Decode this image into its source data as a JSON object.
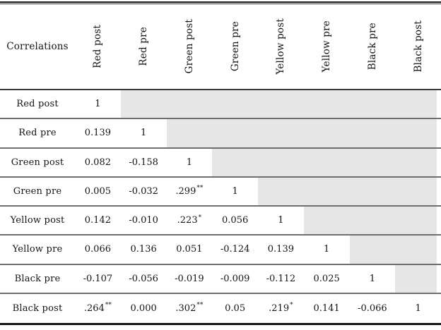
{
  "table": {
    "corner_label": "Correlations",
    "columns": [
      "Red post",
      "Red pre",
      "Green post",
      "Green pre",
      "Yellow post",
      "Yellow pre",
      "Black pre",
      "Black post"
    ],
    "rows": [
      {
        "label": "Red post",
        "values": [
          "1"
        ]
      },
      {
        "label": "Red pre",
        "values": [
          "0.139",
          "1"
        ]
      },
      {
        "label": "Green post",
        "values": [
          "0.082",
          "-0.158",
          "1"
        ]
      },
      {
        "label": "Green pre",
        "values": [
          "0.005",
          "-0.032",
          ".299**",
          "1"
        ]
      },
      {
        "label": "Yellow post",
        "values": [
          "0.142",
          "-0.010",
          ".223*",
          "0.056",
          "1"
        ]
      },
      {
        "label": "Yellow pre",
        "values": [
          "0.066",
          "0.136",
          "0.051",
          "-0.124",
          "0.139",
          "1"
        ]
      },
      {
        "label": "Black pre",
        "values": [
          "-0.107",
          "-0.056",
          "-0.019",
          "-0.009",
          "-0.112",
          "0.025",
          "1"
        ]
      },
      {
        "label": "Black post",
        "values": [
          ".264**",
          "0.000",
          ".302**",
          "0.05",
          ".219*",
          "0.141",
          "-0.066",
          "1"
        ]
      }
    ],
    "colors": {
      "shaded_cell": "#e6e6e6",
      "rule_dark": "#161616",
      "rule_header": "#3a3a3a",
      "rule_row": "#6e6e6e",
      "text": "#141414"
    },
    "significance_marks": {
      "one_star": "*",
      "two_star": "**"
    }
  }
}
